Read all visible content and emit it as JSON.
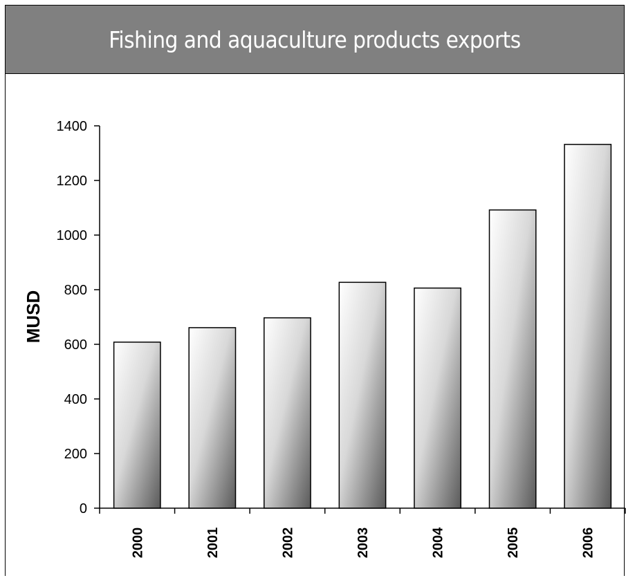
{
  "chart_data": {
    "type": "bar",
    "title": "Fishing and aquaculture products exports",
    "ylabel": "MUSD",
    "xlabel": "",
    "categories": [
      "2000",
      "2001",
      "2002",
      "2003",
      "2004",
      "2005",
      "2006"
    ],
    "values": [
      608,
      661,
      697,
      827,
      806,
      1092,
      1332
    ],
    "ylim": [
      0,
      1400
    ],
    "yticks": [
      0,
      200,
      400,
      600,
      800,
      1000,
      1200,
      1400
    ],
    "grid": false,
    "legend": "none",
    "colors": {
      "title_bg": "#808080",
      "bar_light": "#ffffff",
      "bar_dark": "#5a5a5a",
      "axis": "#000000"
    }
  }
}
